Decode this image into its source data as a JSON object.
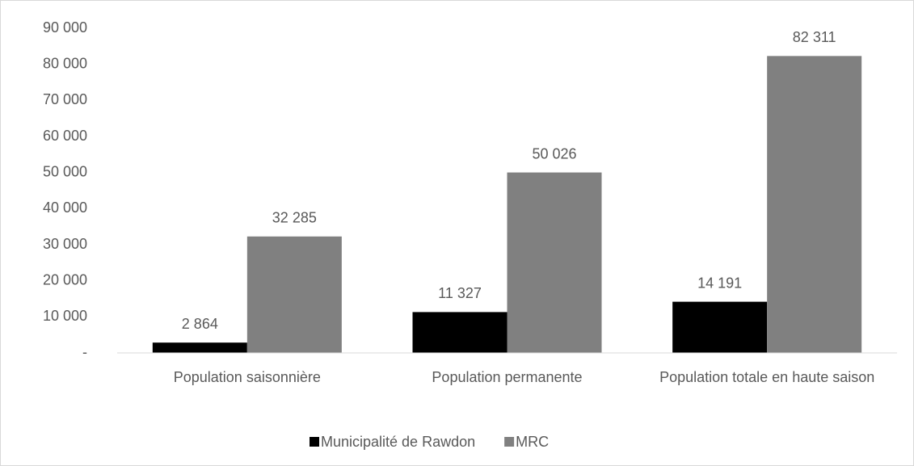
{
  "chart_data": {
    "type": "bar",
    "categories": [
      "Population saisonnière",
      "Population permanente",
      "Population totale en haute saison"
    ],
    "series": [
      {
        "name": "Municipalité de Rawdon",
        "color": "#000000",
        "values": [
          2864,
          11327,
          14191
        ],
        "value_labels": [
          "2 864",
          "11 327",
          "14 191"
        ]
      },
      {
        "name": "MRC",
        "color": "#808080",
        "values": [
          32285,
          50026,
          82311
        ],
        "value_labels": [
          "32 285",
          "50 026",
          "82 311"
        ]
      }
    ],
    "ylim": [
      0,
      90000
    ],
    "yticks": [
      {
        "value": 0,
        "label": "-"
      },
      {
        "value": 10000,
        "label": "10 000"
      },
      {
        "value": 20000,
        "label": "20 000"
      },
      {
        "value": 30000,
        "label": "30 000"
      },
      {
        "value": 40000,
        "label": "40 000"
      },
      {
        "value": 50000,
        "label": "50 000"
      },
      {
        "value": 60000,
        "label": "60 000"
      },
      {
        "value": 70000,
        "label": "70 000"
      },
      {
        "value": 80000,
        "label": "80 000"
      },
      {
        "value": 90000,
        "label": "90 000"
      }
    ],
    "grid": false,
    "legend": "bottom"
  }
}
